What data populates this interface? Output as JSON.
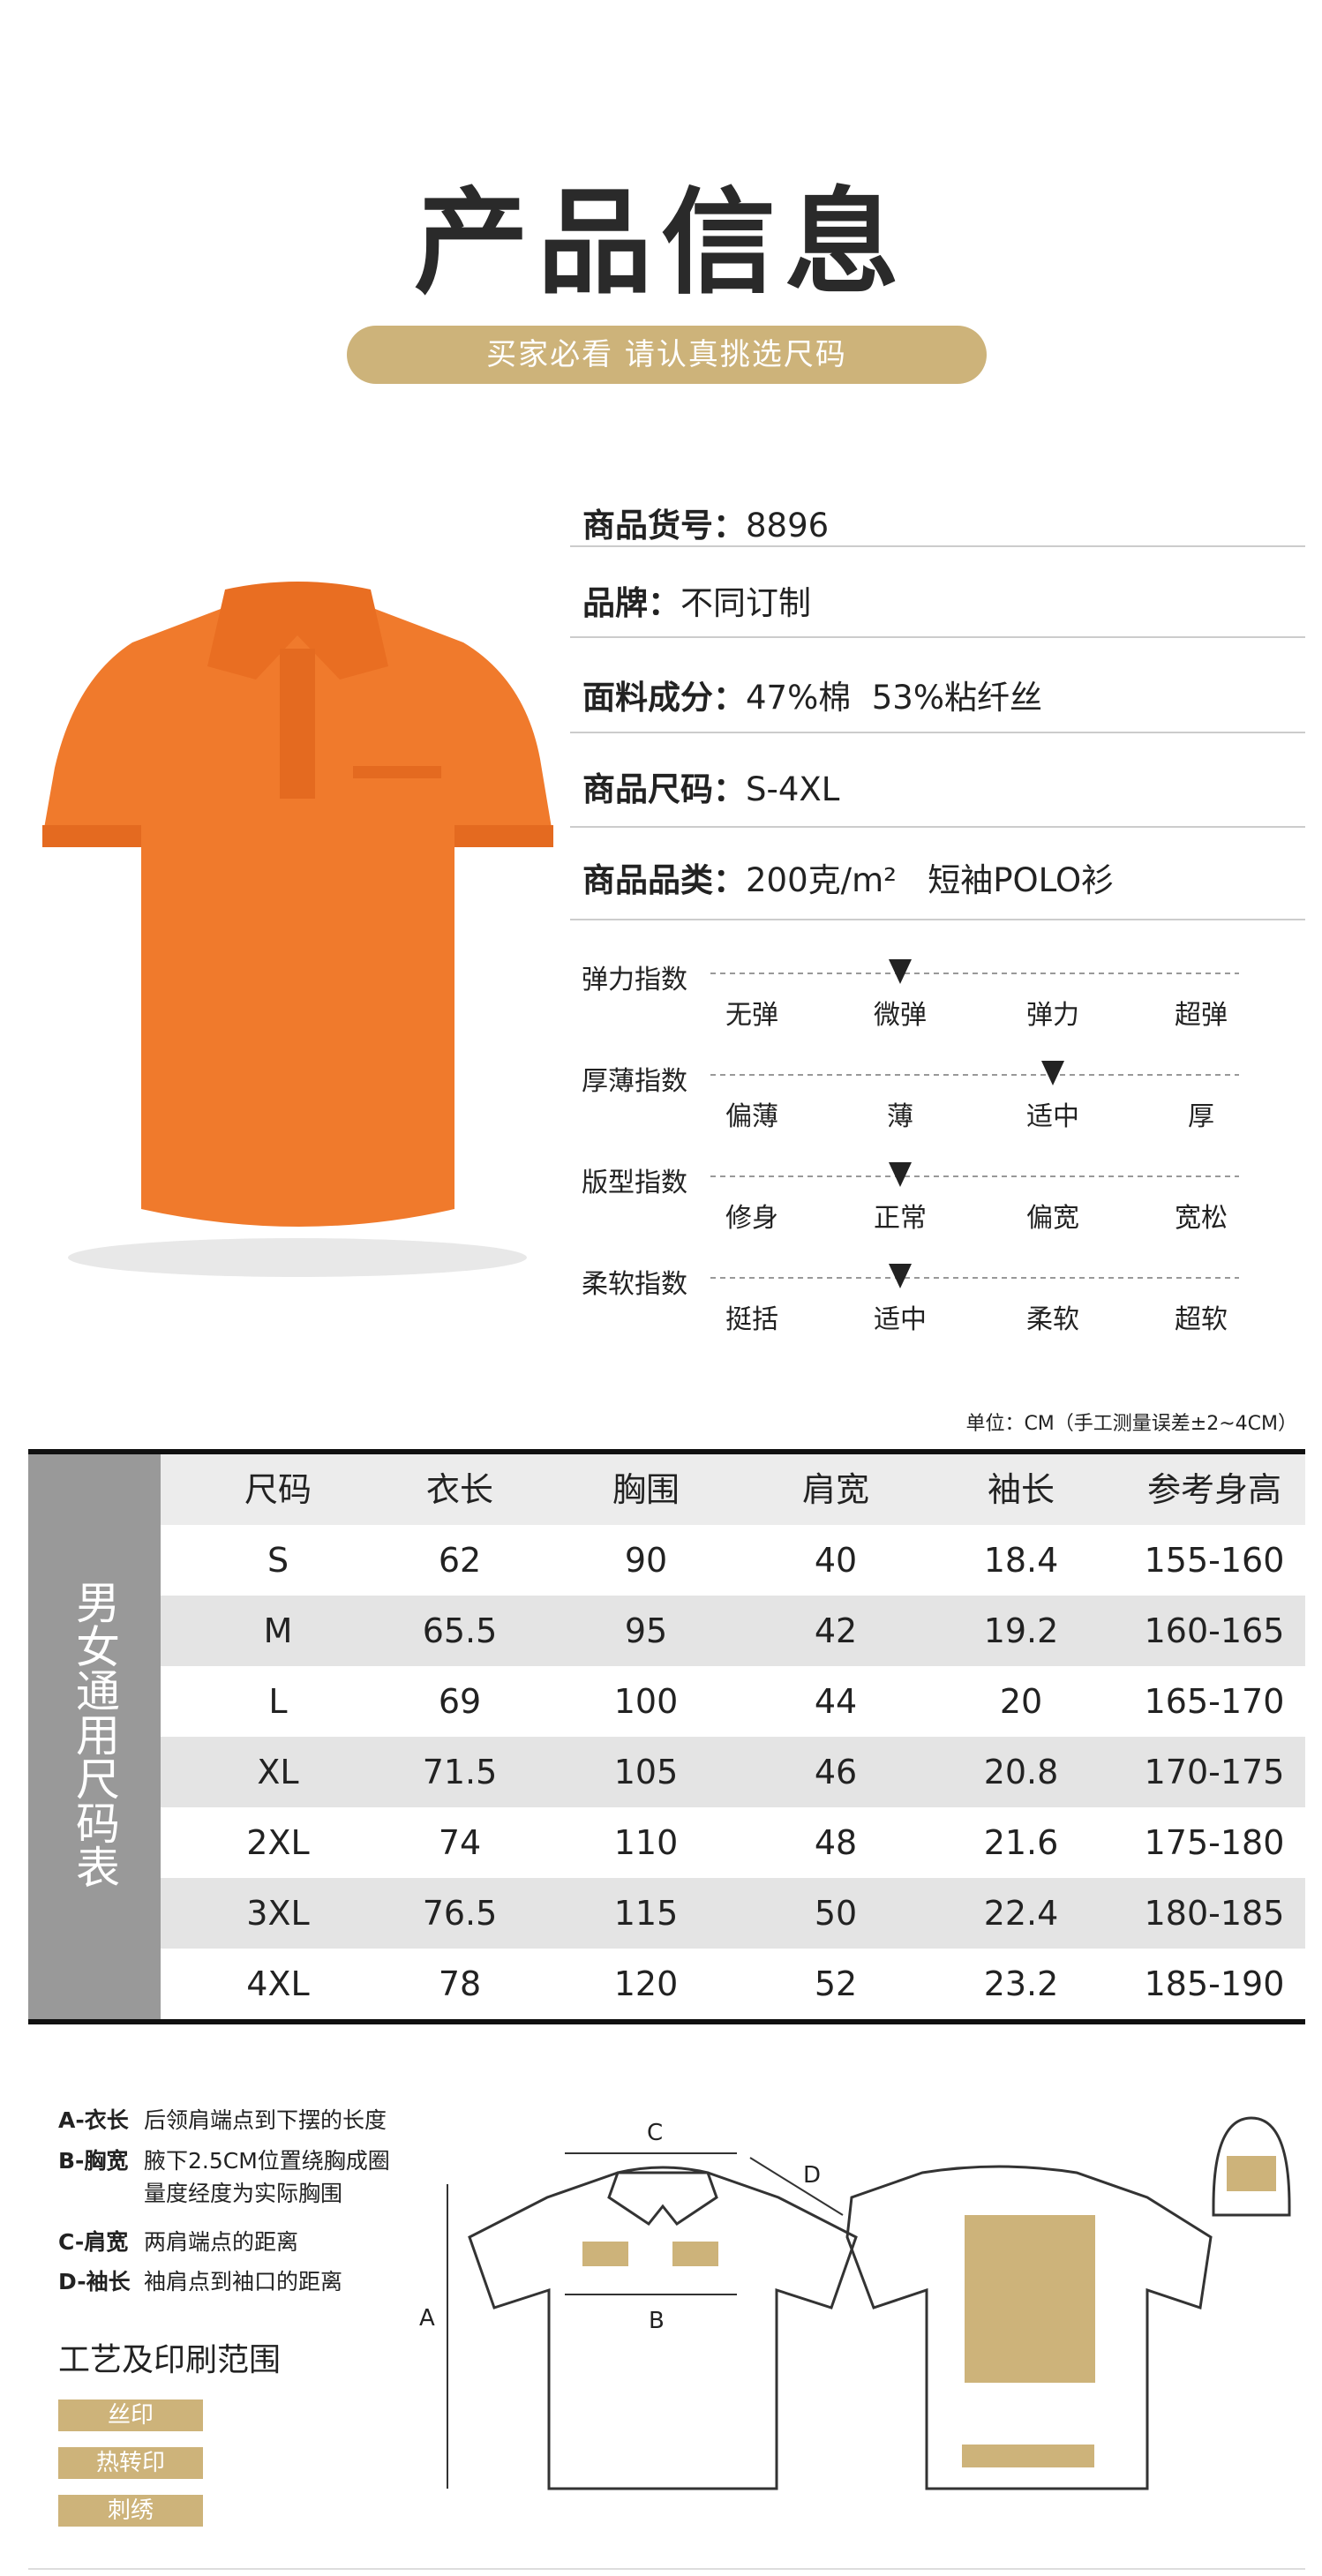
{
  "header": {
    "title": "产品信息",
    "subtitle": "买家必看 请认真挑选尺码"
  },
  "specs": [
    {
      "label": "商品货号：",
      "value": "8896"
    },
    {
      "label": "品牌：",
      "value": "不同订制"
    },
    {
      "label": "面料成分：",
      "value": "47%棉  53%粘纤丝"
    },
    {
      "label": "商品尺码：",
      "value": "S-4XL"
    },
    {
      "label": "商品品类：",
      "value": "200克/m²   短袖POLO衫"
    }
  ],
  "indexes": [
    {
      "label": "弹力指数",
      "options": [
        "无弹",
        "微弹",
        "弹力",
        "超弹"
      ],
      "selected": 1
    },
    {
      "label": "厚薄指数",
      "options": [
        "偏薄",
        "薄",
        "适中",
        "厚"
      ],
      "selected": 2
    },
    {
      "label": "版型指数",
      "options": [
        "修身",
        "正常",
        "偏宽",
        "宽松"
      ],
      "selected": 1
    },
    {
      "label": "柔软指数",
      "options": [
        "挺括",
        "适中",
        "柔软",
        "超软"
      ],
      "selected": 1
    }
  ],
  "size_table": {
    "unit_note": "单位：CM（手工测量误差±2~4CM）",
    "side_label": "男女通用尺码表",
    "columns": [
      "尺码",
      "衣长",
      "胸围",
      "肩宽",
      "袖长",
      "参考身高"
    ],
    "rows": [
      [
        "S",
        62,
        90,
        40,
        18.4,
        "155-160"
      ],
      [
        "M",
        65.5,
        95,
        42,
        19.2,
        "160-165"
      ],
      [
        "L",
        69,
        100,
        44,
        20,
        "165-170"
      ],
      [
        "XL",
        71.5,
        105,
        46,
        20.8,
        "170-175"
      ],
      [
        "2XL",
        74,
        110,
        48,
        21.6,
        "175-180"
      ],
      [
        "3XL",
        76.5,
        115,
        50,
        22.4,
        "180-185"
      ],
      [
        "4XL",
        78,
        120,
        52,
        23.2,
        "185-190"
      ]
    ]
  },
  "measurements": [
    {
      "key": "A-衣长",
      "lines": [
        "后领肩端点到下摆的长度"
      ]
    },
    {
      "key": "B-胸宽",
      "lines": [
        "腋下2.5CM位置绕胸成圈",
        "量度经度为实际胸围"
      ]
    },
    {
      "key": "C-肩宽",
      "lines": [
        "两肩端点的距离"
      ]
    },
    {
      "key": "D-袖长",
      "lines": [
        "袖肩点到袖口的距离"
      ]
    }
  ],
  "diagram_labels": [
    "A",
    "B",
    "C",
    "D"
  ],
  "print_area": {
    "title": "工艺及印刷范围",
    "methods": [
      "丝印",
      "热转印",
      "刺绣"
    ]
  }
}
